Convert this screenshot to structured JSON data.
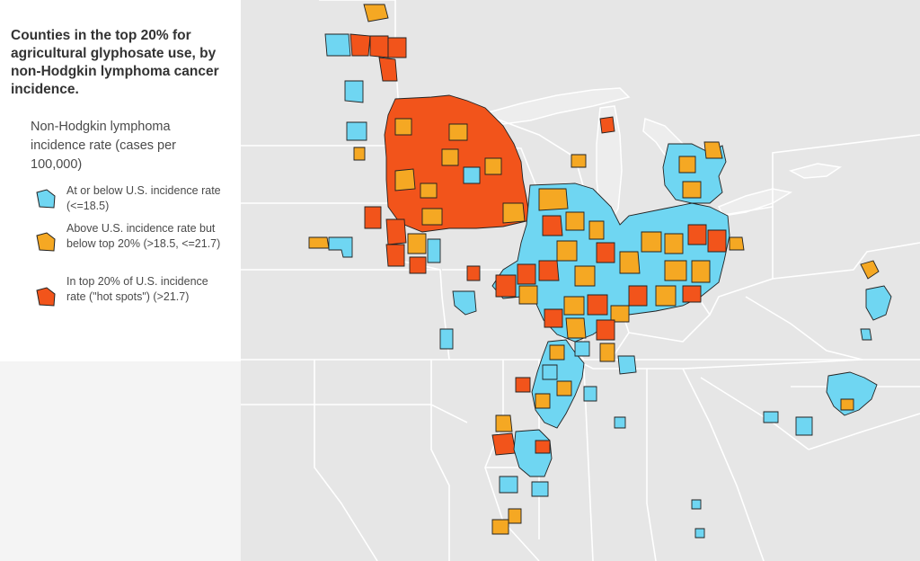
{
  "title": "Counties in the top 20% for agricultural glyphosate use, by non-Hodgkin lymphoma cancer incidence.",
  "legend": {
    "title": "Non-Hodgkin lymphoma incidence rate (cases per 100,000)",
    "items": [
      {
        "label": "At or below U.S. incidence rate (<=18.5)",
        "color": "#6fd6f2"
      },
      {
        "label": "Above U.S. incidence rate but below top 20% (>18.5, <=21.7)",
        "color": "#f5a823"
      },
      {
        "label": "In top 20% of U.S. incidence rate (\"hot spots\") (>21.7)",
        "color": "#f2541b"
      }
    ]
  },
  "map": {
    "background_color": "#e6e6e6",
    "border_color": "#ffffff",
    "county_outline_color": "#222222"
  }
}
